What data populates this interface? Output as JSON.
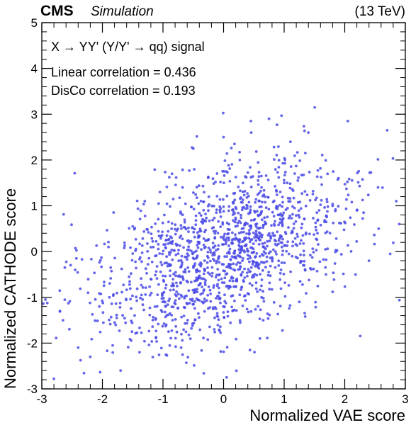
{
  "header": {
    "experiment": "CMS",
    "status": "Simulation",
    "energy": "(13 TeV)"
  },
  "annotations": {
    "process": "X → YY' (Y/Y' → qq) signal",
    "linear_corr": "Linear correlation = 0.436",
    "disco_corr": "DisCo correlation = 0.193"
  },
  "chart_data": {
    "type": "scatter",
    "title": "",
    "xlabel": "Normalized VAE score",
    "ylabel": "Normalized CATHODE score",
    "xlim": [
      -3,
      3
    ],
    "ylim": [
      -3,
      5
    ],
    "xticks": [
      "-3",
      "-2",
      "-1",
      "0",
      "1",
      "2",
      "3"
    ],
    "yticks": [
      "-3",
      "-2",
      "-1",
      "0",
      "1",
      "2",
      "3",
      "4",
      "5"
    ],
    "marker_color": "#4a4ae6",
    "n_points": 1500,
    "correlation": 0.436,
    "grid": false,
    "points_sample": [
      [
        -2.8,
        -2.78
      ],
      [
        -2.7,
        -1.3
      ],
      [
        -2.65,
        -1.5
      ],
      [
        -2.62,
        -0.35
      ],
      [
        -2.45,
        -0.4
      ],
      [
        -2.4,
        -2.1
      ],
      [
        -2.2,
        -2.3
      ],
      [
        -2.05,
        -1.2
      ],
      [
        -1.9,
        0.1
      ],
      [
        -1.7,
        -2.6
      ],
      [
        -1.5,
        0.55
      ],
      [
        -1.3,
        1.1
      ],
      [
        -1.2,
        -0.6
      ],
      [
        -1.05,
        1.3
      ],
      [
        -0.85,
        1.7
      ],
      [
        -0.7,
        -2.1
      ],
      [
        -0.5,
        2.25
      ],
      [
        -0.3,
        0.1
      ],
      [
        -0.15,
        -0.2
      ],
      [
        0.0,
        2.5
      ],
      [
        0.05,
        -2.75
      ],
      [
        0.2,
        0.3
      ],
      [
        0.35,
        0.6
      ],
      [
        0.45,
        2.85
      ],
      [
        0.6,
        -1.9
      ],
      [
        0.75,
        2.9
      ],
      [
        0.9,
        0.8
      ],
      [
        1.05,
        1.5
      ],
      [
        1.25,
        -1.1
      ],
      [
        1.4,
        2.6
      ],
      [
        1.55,
        0.4
      ],
      [
        1.8,
        1.0
      ],
      [
        2.05,
        2.85
      ],
      [
        2.2,
        0.9
      ],
      [
        2.4,
        -0.2
      ],
      [
        2.55,
        1.4
      ],
      [
        2.7,
        2.65
      ],
      [
        2.75,
        -0.05
      ],
      [
        2.85,
        1.1
      ],
      [
        2.9,
        0.6
      ]
    ]
  }
}
